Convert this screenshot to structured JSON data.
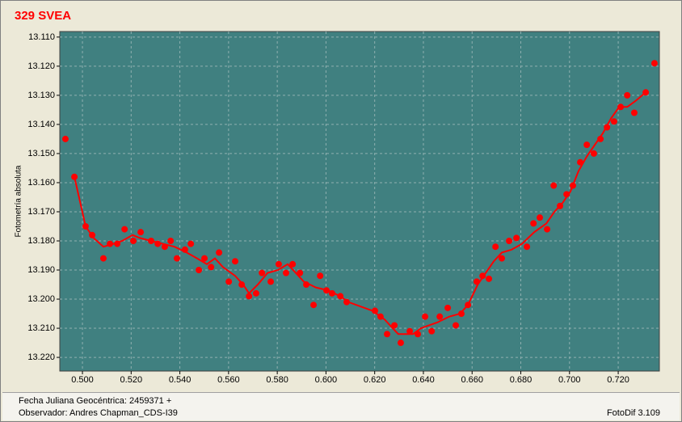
{
  "chart_data": {
    "type": "scatter",
    "title": "329 SVEA",
    "y_label": "Fotometría absoluta",
    "xlim": [
      0.4907,
      0.7369
    ],
    "ylim": [
      13.2247,
      13.1081
    ],
    "grid": true,
    "xticks": [
      {
        "value": 0.5,
        "label": "0.500"
      },
      {
        "value": 0.52,
        "label": "0.520"
      },
      {
        "value": 0.54,
        "label": "0.540"
      },
      {
        "value": 0.56,
        "label": "0.560"
      },
      {
        "value": 0.58,
        "label": "0.580"
      },
      {
        "value": 0.6,
        "label": "0.600"
      },
      {
        "value": 0.62,
        "label": "0.620"
      },
      {
        "value": 0.64,
        "label": "0.640"
      },
      {
        "value": 0.66,
        "label": "0.660"
      },
      {
        "value": 0.68,
        "label": "0.680"
      },
      {
        "value": 0.7,
        "label": "0.700"
      },
      {
        "value": 0.72,
        "label": "0.720"
      }
    ],
    "yticks": [
      {
        "value": 13.11,
        "label": "13.110"
      },
      {
        "value": 13.12,
        "label": "13.120"
      },
      {
        "value": 13.13,
        "label": "13.130"
      },
      {
        "value": 13.14,
        "label": "13.140"
      },
      {
        "value": 13.15,
        "label": "13.150"
      },
      {
        "value": 13.16,
        "label": "13.160"
      },
      {
        "value": 13.17,
        "label": "13.170"
      },
      {
        "value": 13.18,
        "label": "13.180"
      },
      {
        "value": 13.19,
        "label": "13.190"
      },
      {
        "value": 13.2,
        "label": "13.200"
      },
      {
        "value": 13.21,
        "label": "13.210"
      },
      {
        "value": 13.22,
        "label": "13.220"
      }
    ],
    "series": [
      {
        "style": "points",
        "color": "#ff0000",
        "x": [
          0.493,
          0.4967,
          0.5013,
          0.504,
          0.5086,
          0.5113,
          0.5143,
          0.5173,
          0.5209,
          0.5239,
          0.5282,
          0.5309,
          0.5338,
          0.5362,
          0.5388,
          0.5421,
          0.5445,
          0.5478,
          0.5501,
          0.5528,
          0.5561,
          0.5601,
          0.5627,
          0.5654,
          0.5684,
          0.5713,
          0.5737,
          0.5773,
          0.5806,
          0.5836,
          0.5863,
          0.5893,
          0.5919,
          0.5949,
          0.5976,
          0.6002,
          0.6025,
          0.6059,
          0.6085,
          0.6201,
          0.6224,
          0.6251,
          0.6281,
          0.6307,
          0.6344,
          0.6377,
          0.6407,
          0.6434,
          0.6467,
          0.65,
          0.6533,
          0.6556,
          0.6583,
          0.6619,
          0.6643,
          0.6669,
          0.6696,
          0.6722,
          0.6752,
          0.6782,
          0.6825,
          0.6852,
          0.6878,
          0.6908,
          0.6935,
          0.6961,
          0.6988,
          0.7014,
          0.7044,
          0.7071,
          0.71,
          0.7127,
          0.7154,
          0.7183,
          0.721,
          0.7237,
          0.7266,
          0.7313,
          0.7349
        ],
        "values": [
          13.145,
          13.158,
          13.175,
          13.178,
          13.186,
          13.181,
          13.181,
          13.176,
          13.18,
          13.177,
          13.18,
          13.181,
          13.182,
          13.18,
          13.186,
          13.183,
          13.181,
          13.19,
          13.186,
          13.189,
          13.184,
          13.194,
          13.187,
          13.195,
          13.199,
          13.198,
          13.191,
          13.194,
          13.188,
          13.191,
          13.188,
          13.191,
          13.195,
          13.202,
          13.192,
          13.197,
          13.198,
          13.199,
          13.201,
          13.204,
          13.206,
          13.212,
          13.209,
          13.215,
          13.211,
          13.212,
          13.206,
          13.211,
          13.206,
          13.203,
          13.209,
          13.205,
          13.202,
          13.194,
          13.192,
          13.193,
          13.182,
          13.186,
          13.18,
          13.179,
          13.182,
          13.174,
          13.172,
          13.176,
          13.161,
          13.168,
          13.164,
          13.161,
          13.153,
          13.147,
          13.15,
          13.145,
          13.141,
          13.139,
          13.134,
          13.13,
          13.136,
          13.129,
          13.119
        ]
      },
      {
        "style": "line",
        "color": "#ff0000",
        "x": [
          0.4967,
          0.5013,
          0.5046,
          0.5086,
          0.5129,
          0.5163,
          0.5206,
          0.5236,
          0.5282,
          0.5329,
          0.5378,
          0.5428,
          0.5471,
          0.5511,
          0.5544,
          0.5577,
          0.5627,
          0.566,
          0.5684,
          0.572,
          0.576,
          0.5803,
          0.5843,
          0.5876,
          0.5909,
          0.5959,
          0.6009,
          0.6059,
          0.6092,
          0.6191,
          0.6241,
          0.6274,
          0.6297,
          0.6324,
          0.6357,
          0.639,
          0.6423,
          0.6457,
          0.6506,
          0.655,
          0.6583,
          0.6623,
          0.6656,
          0.6689,
          0.6722,
          0.6762,
          0.6805,
          0.6855,
          0.6905,
          0.6938,
          0.6971,
          0.7004,
          0.7037,
          0.7071,
          0.7104,
          0.7137,
          0.717,
          0.7204,
          0.7237,
          0.727,
          0.7313
        ],
        "values": [
          13.158,
          13.175,
          13.179,
          13.182,
          13.181,
          13.18,
          13.178,
          13.179,
          13.18,
          13.181,
          13.182,
          13.184,
          13.186,
          13.188,
          13.186,
          13.189,
          13.192,
          13.195,
          13.198,
          13.195,
          13.191,
          13.19,
          13.188,
          13.191,
          13.194,
          13.196,
          13.197,
          13.199,
          13.201,
          13.204,
          13.207,
          13.21,
          13.212,
          13.212,
          13.212,
          13.21,
          13.209,
          13.208,
          13.206,
          13.205,
          13.202,
          13.195,
          13.191,
          13.187,
          13.184,
          13.183,
          13.181,
          13.177,
          13.174,
          13.17,
          13.167,
          13.163,
          13.156,
          13.151,
          13.147,
          13.143,
          13.138,
          13.134,
          13.134,
          13.132,
          13.129
        ]
      }
    ]
  },
  "footer": {
    "date_label": "Fecha Juliana Geocéntrica: 2459371 +",
    "observer": "Observador: Andres Chapman_CDS-I39",
    "software": "FotoDif 3.109"
  }
}
